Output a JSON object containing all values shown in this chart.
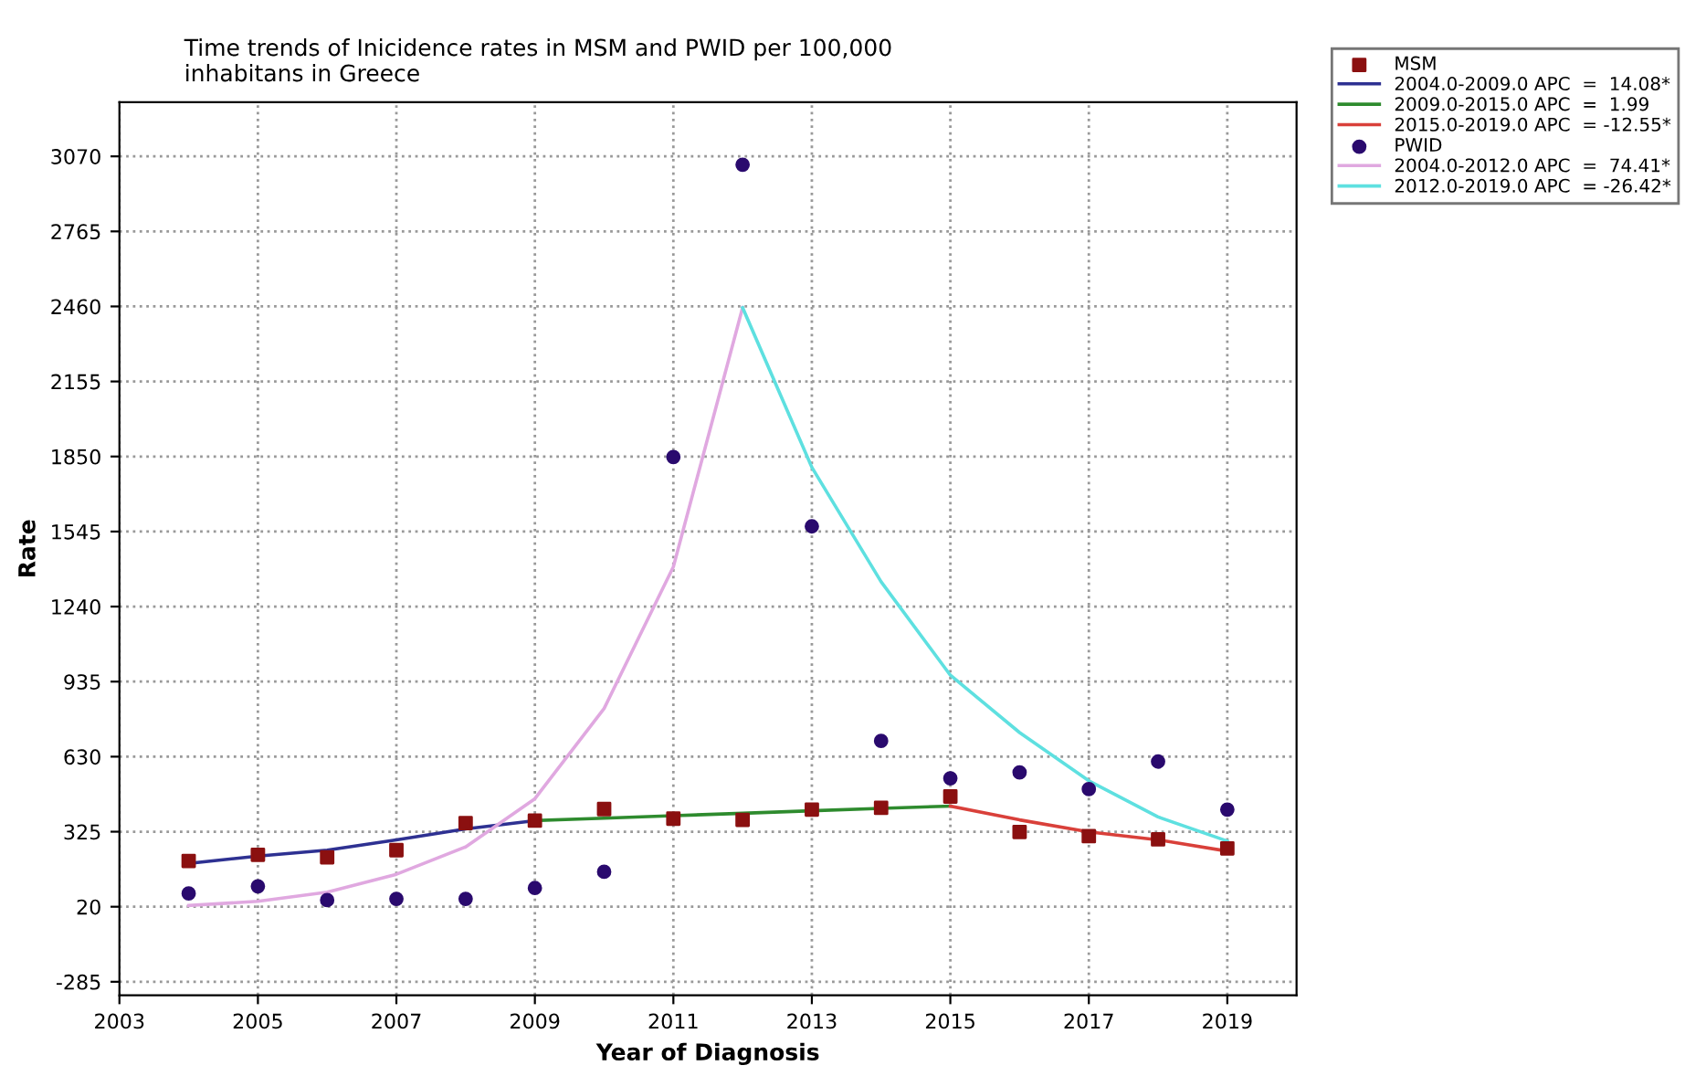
{
  "chart_data": {
    "type": "scatter",
    "title": "Time trends of Inicidence rates in MSM and PWID per 100,000\ninhabitans in Greece",
    "xlabel": "Year of Diagnosis",
    "ylabel": "Rate",
    "x": [
      2004,
      2005,
      2006,
      2007,
      2008,
      2009,
      2010,
      2011,
      2012,
      2013,
      2014,
      2015,
      2016,
      2017,
      2018,
      2019
    ],
    "series": [
      {
        "name": "MSM",
        "marker": "square",
        "color": "#8b1010",
        "values": [
          206,
          231,
          221,
          250,
          360,
          370,
          417,
          378,
          373,
          415,
          422,
          468,
          324,
          307,
          294,
          257
        ]
      },
      {
        "name": "2004.0-2009.0 APC  =  14.08*",
        "type": "line",
        "color": "#2e3192",
        "x": [
          2004,
          2005,
          2006,
          2007,
          2008,
          2009
        ],
        "values": [
          196,
          226,
          250,
          292,
          336,
          370
        ]
      },
      {
        "name": "2009.0-2015.0 APC  =  1.99",
        "type": "line",
        "color": "#2e8b2e",
        "x": [
          2009,
          2010,
          2011,
          2012,
          2013,
          2014,
          2015
        ],
        "values": [
          370,
          380,
          390,
          400,
          410,
          420,
          429
        ]
      },
      {
        "name": "2015.0-2019.0 APC  = -12.55*",
        "type": "line",
        "color": "#d9403a",
        "x": [
          2015,
          2016,
          2017,
          2018,
          2019
        ],
        "values": [
          429,
          373,
          324,
          292,
          246
        ]
      },
      {
        "name": "PWID",
        "marker": "circle",
        "color": "#2a0a6e",
        "values": [
          74,
          103,
          47,
          52,
          52,
          96,
          162,
          1848,
          3036,
          1566,
          694,
          542,
          566,
          498,
          610,
          415
        ]
      },
      {
        "name": "2004.0-2012.0 APC  =  74.41*",
        "type": "line",
        "color": "#e0a8e0",
        "x": [
          2004,
          2005,
          2006,
          2007,
          2008,
          2009,
          2010,
          2011,
          2012
        ],
        "values": [
          25,
          42,
          79,
          152,
          263,
          459,
          826,
          1402,
          2455
        ]
      },
      {
        "name": "2012.0-2019.0 APC  = -26.42*",
        "type": "line",
        "color": "#5ee0e0",
        "x": [
          2012,
          2013,
          2014,
          2015,
          2016,
          2017,
          2018,
          2019
        ],
        "values": [
          2455,
          1806,
          1341,
          961,
          728,
          532,
          385,
          287
        ]
      }
    ],
    "xlim": [
      2003,
      2020
    ],
    "xticks": [
      2003,
      2005,
      2007,
      2009,
      2011,
      2013,
      2015,
      2017,
      2019
    ],
    "ylim": [
      -340,
      3290
    ],
    "yticks": [
      -285,
      20,
      325,
      630,
      935,
      1240,
      1545,
      1850,
      2155,
      2460,
      2765,
      3070
    ],
    "grid": true,
    "legend": "top right"
  }
}
